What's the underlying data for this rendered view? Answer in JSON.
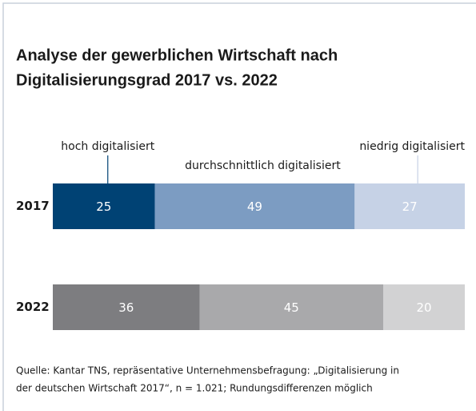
{
  "chart_data": {
    "type": "stacked-bar-horizontal",
    "title": [
      "Analyse der gewerblichen Wirtschaft nach",
      "Digitalisierungsgrad 2017 vs. 2022"
    ],
    "categories": [
      "2017",
      "2022"
    ],
    "series": [
      {
        "name": "hoch digitalisiert",
        "colors": [
          "#004274",
          "#7d7d80"
        ],
        "values": [
          25,
          36
        ]
      },
      {
        "name": "durchschnittlich digitalisiert",
        "colors": [
          "#7c9cc2",
          "#a9a9ab"
        ],
        "values": [
          49,
          45
        ]
      },
      {
        "name": "niedrig digitalisiert",
        "colors": [
          "#c6d2e6",
          "#d2d2d3"
        ],
        "values": [
          27,
          20
        ]
      }
    ],
    "source": [
      "Quelle: Kantar TNS, repräsentative Unternehmensbefragung: „Digitalisierung in",
      "der deutschen Wirtschaft 2017“, n = 1.021; Rundungsdifferenzen möglich"
    ]
  }
}
